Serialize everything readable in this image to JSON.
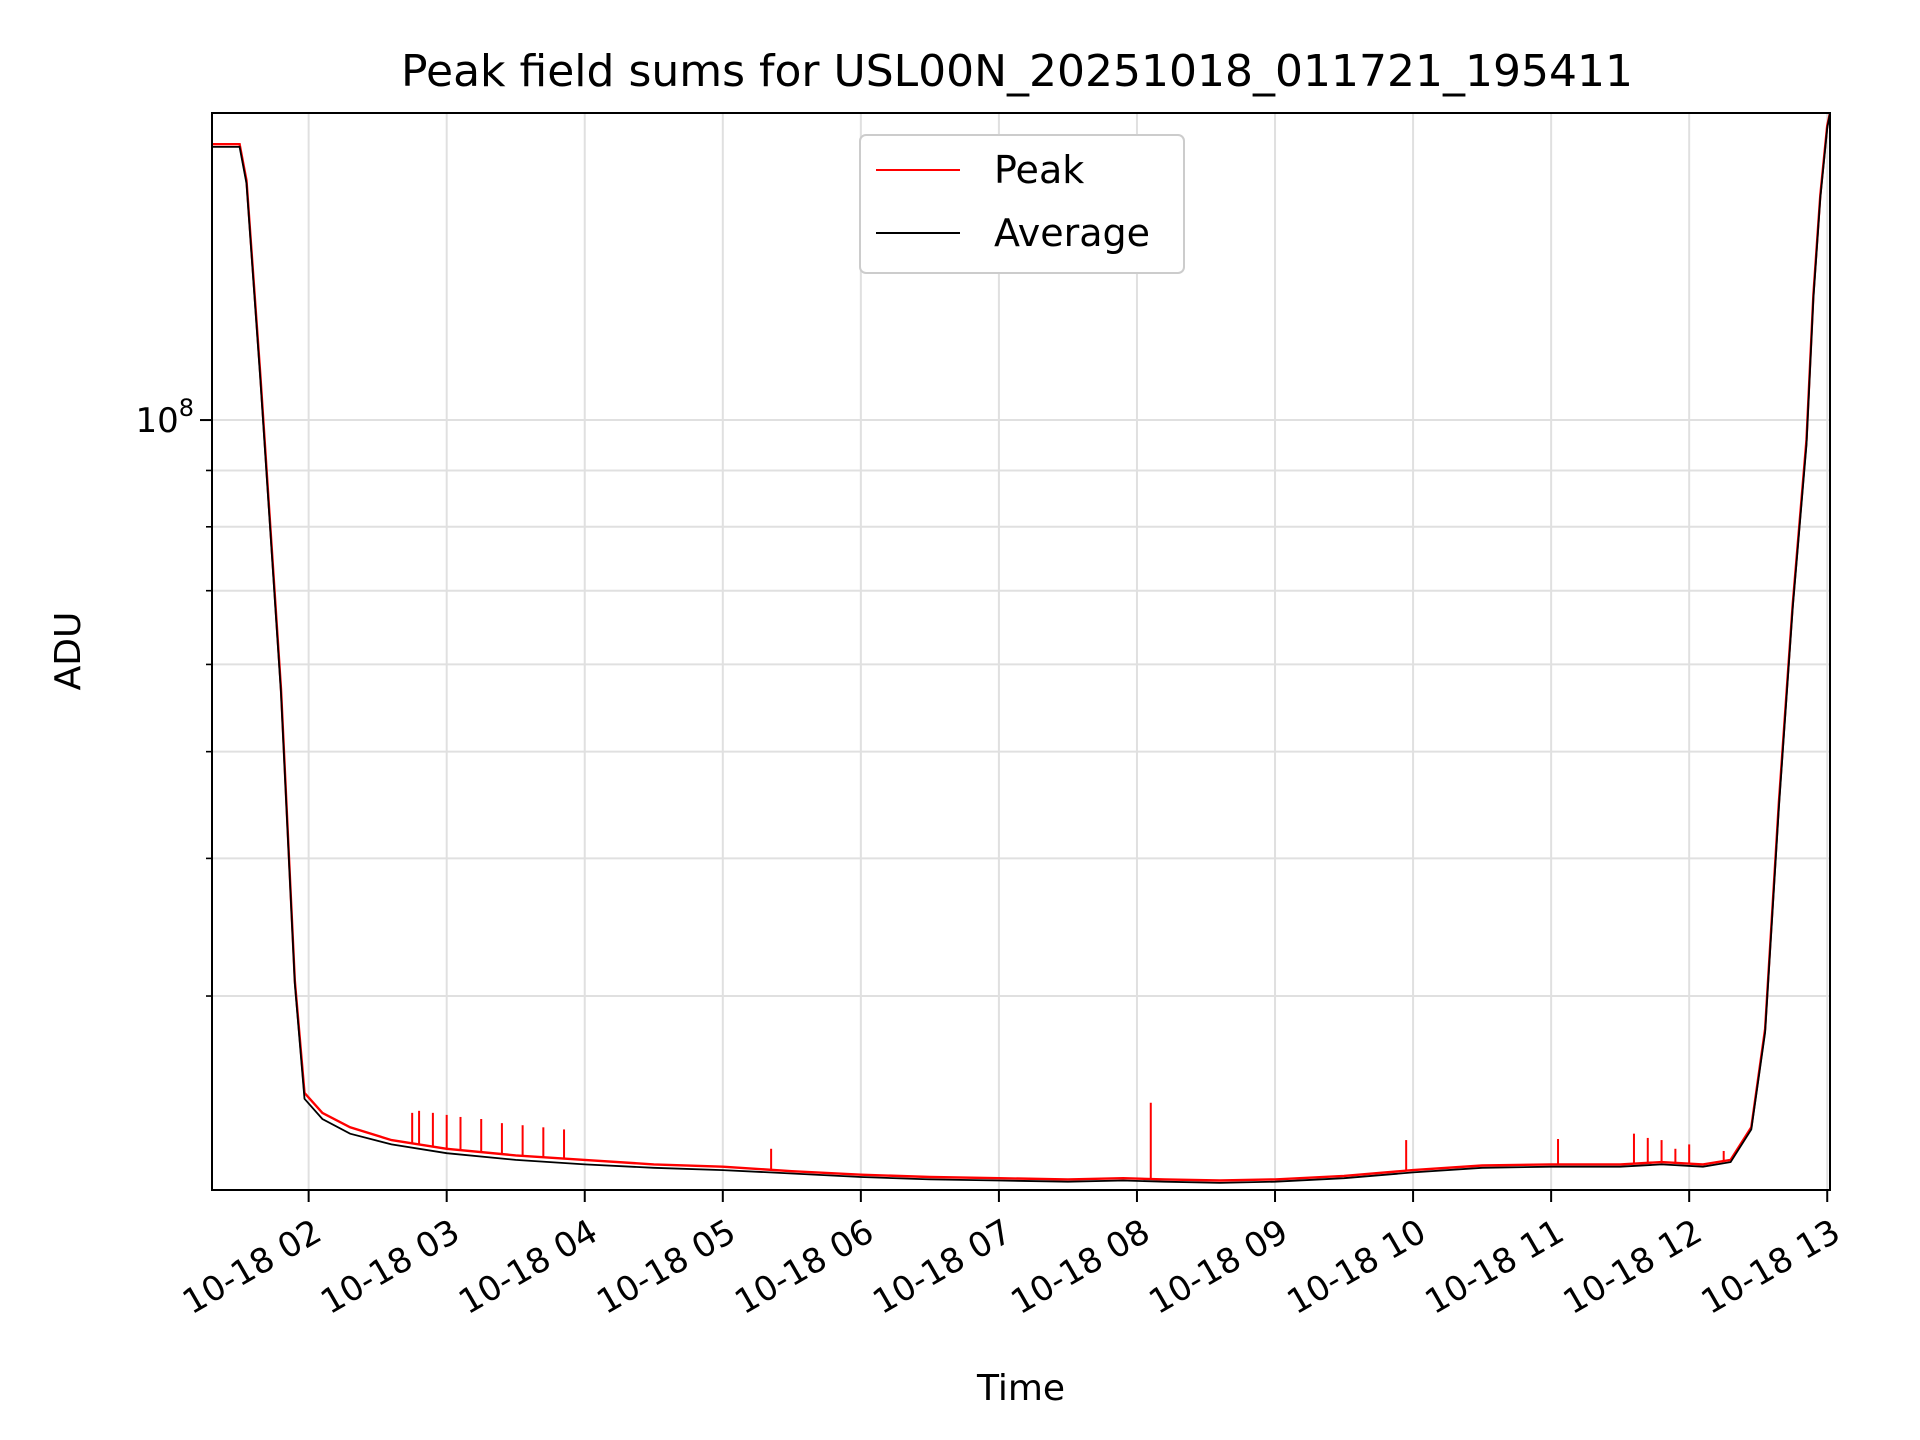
{
  "chart_data": {
    "type": "line",
    "title": "Peak field sums for USL00N_20251018_011721_195411",
    "xlabel": "Time",
    "ylabel": "ADU",
    "yscale": "log",
    "ylim": [
      20000000,
      190000000
    ],
    "xlim": [
      1.3,
      13.02
    ],
    "grid": true,
    "legend_position": "top-center",
    "x_ticks": [
      {
        "value": 2,
        "label": "10-18 02"
      },
      {
        "value": 3,
        "label": "10-18 03"
      },
      {
        "value": 4,
        "label": "10-18 04"
      },
      {
        "value": 5,
        "label": "10-18 05"
      },
      {
        "value": 6,
        "label": "10-18 06"
      },
      {
        "value": 7,
        "label": "10-18 07"
      },
      {
        "value": 8,
        "label": "10-18 08"
      },
      {
        "value": 9,
        "label": "10-18 09"
      },
      {
        "value": 10,
        "label": "10-18 10"
      },
      {
        "value": 11,
        "label": "10-18 11"
      },
      {
        "value": 12,
        "label": "10-18 12"
      },
      {
        "value": 13,
        "label": "10-18 13"
      }
    ],
    "y_ticks": [
      {
        "value": 100000000,
        "base": "10",
        "exp": "8"
      }
    ],
    "y_minor_ticks": [
      30000000,
      40000000,
      50000000,
      60000000,
      70000000,
      80000000,
      90000000,
      200000000
    ],
    "series": [
      {
        "name": "Peak",
        "color": "#ff0000",
        "x": [
          1.3,
          1.5,
          1.55,
          1.65,
          1.8,
          1.9,
          1.97,
          2.1,
          2.3,
          2.6,
          3.0,
          3.5,
          4.0,
          4.5,
          5.0,
          5.5,
          6.0,
          6.5,
          7.0,
          7.5,
          7.9,
          8.2,
          8.6,
          9.0,
          9.5,
          10.0,
          10.5,
          11.0,
          11.5,
          11.8,
          12.1,
          12.3,
          12.45,
          12.55,
          12.65,
          12.75,
          12.85,
          12.9,
          12.95,
          13.0,
          13.02
        ],
        "y": [
          178000000,
          178000000,
          165000000,
          110000000,
          57000000,
          31000000,
          24500000,
          23500000,
          22800000,
          22200000,
          21800000,
          21500000,
          21300000,
          21100000,
          21000000,
          20800000,
          20650000,
          20550000,
          20500000,
          20450000,
          20500000,
          20450000,
          20400000,
          20450000,
          20600000,
          20850000,
          21050000,
          21100000,
          21100000,
          21200000,
          21100000,
          21300000,
          22800000,
          28000000,
          45000000,
          68000000,
          96000000,
          130000000,
          160000000,
          185000000,
          190000000
        ],
        "spikes": [
          {
            "x": 2.75,
            "y": 23500000
          },
          {
            "x": 2.8,
            "y": 23600000
          },
          {
            "x": 2.9,
            "y": 23500000
          },
          {
            "x": 3.0,
            "y": 23400000
          },
          {
            "x": 3.1,
            "y": 23300000
          },
          {
            "x": 3.25,
            "y": 23200000
          },
          {
            "x": 3.4,
            "y": 23000000
          },
          {
            "x": 3.55,
            "y": 22900000
          },
          {
            "x": 3.7,
            "y": 22800000
          },
          {
            "x": 3.85,
            "y": 22700000
          },
          {
            "x": 5.35,
            "y": 21800000
          },
          {
            "x": 8.1,
            "y": 24000000
          },
          {
            "x": 9.95,
            "y": 22200000
          },
          {
            "x": 11.05,
            "y": 22250000
          },
          {
            "x": 11.6,
            "y": 22500000
          },
          {
            "x": 11.7,
            "y": 22300000
          },
          {
            "x": 11.8,
            "y": 22200000
          },
          {
            "x": 11.9,
            "y": 21800000
          },
          {
            "x": 12.0,
            "y": 22000000
          },
          {
            "x": 12.25,
            "y": 21700000
          }
        ]
      },
      {
        "name": "Average",
        "color": "#000000",
        "x": [
          1.3,
          1.5,
          1.55,
          1.65,
          1.8,
          1.9,
          1.97,
          2.1,
          2.3,
          2.6,
          3.0,
          3.5,
          4.0,
          4.5,
          5.0,
          5.5,
          6.0,
          6.5,
          7.0,
          7.5,
          7.9,
          8.2,
          8.6,
          9.0,
          9.5,
          10.0,
          10.5,
          11.0,
          11.5,
          11.8,
          12.1,
          12.3,
          12.45,
          12.55,
          12.65,
          12.75,
          12.85,
          12.9,
          12.95,
          13.0,
          13.02
        ],
        "y": [
          177000000,
          177000000,
          164000000,
          109000000,
          56500000,
          30800000,
          24200000,
          23200000,
          22500000,
          22000000,
          21600000,
          21300000,
          21100000,
          20950000,
          20850000,
          20700000,
          20550000,
          20450000,
          20400000,
          20350000,
          20400000,
          20350000,
          20300000,
          20350000,
          20500000,
          20750000,
          20950000,
          21000000,
          21000000,
          21100000,
          21000000,
          21200000,
          22700000,
          27800000,
          44500000,
          67500000,
          95000000,
          129000000,
          159000000,
          184000000,
          190000000
        ]
      }
    ]
  }
}
